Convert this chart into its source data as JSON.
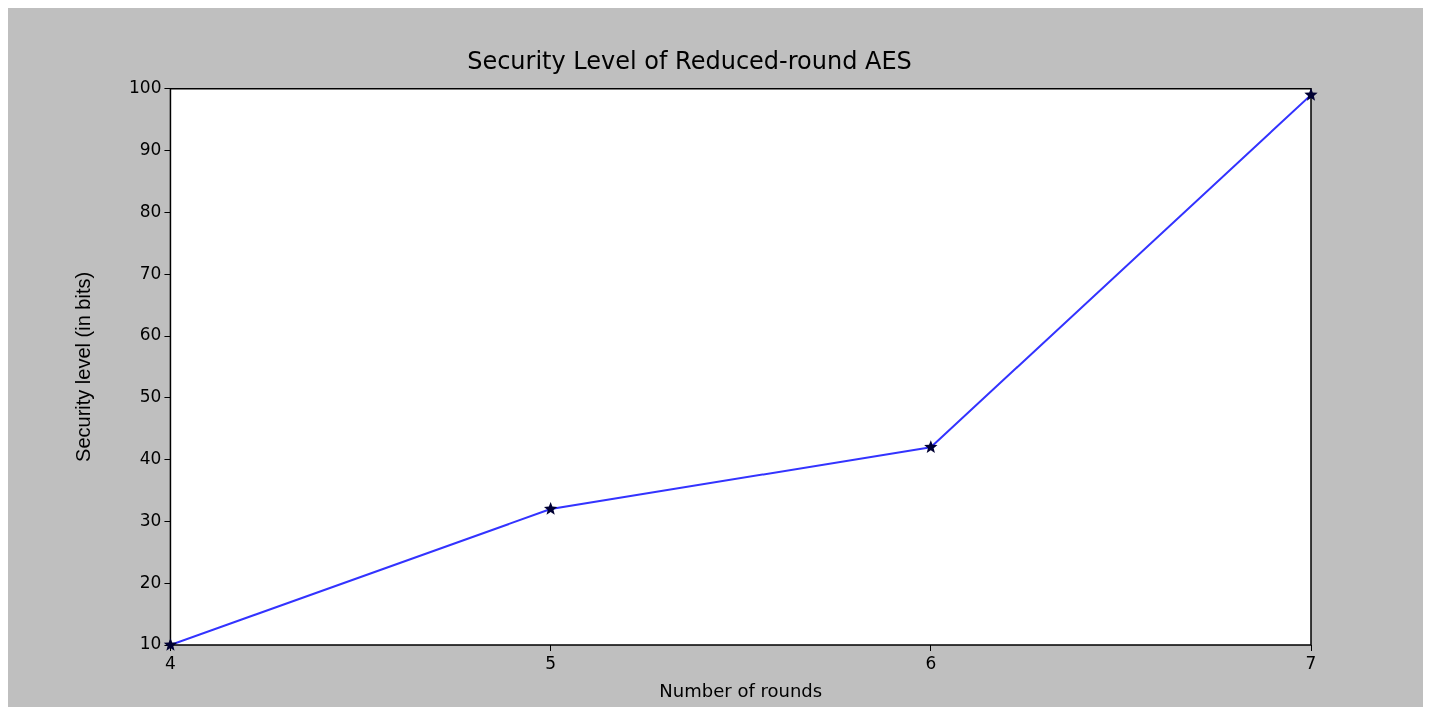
{
  "chart_data": {
    "type": "line",
    "title": "Security Level of Reduced-round AES",
    "xlabel": "Number of rounds",
    "ylabel": "Security level (in bits)",
    "x": [
      4,
      5,
      6,
      7
    ],
    "series": [
      {
        "color": "#3333ff",
        "values": [
          10,
          32,
          42,
          99
        ]
      }
    ],
    "xlim": [
      4,
      7
    ],
    "xticks": [
      4,
      5,
      6,
      7
    ],
    "ylim": [
      10,
      100
    ],
    "yticks": [
      10,
      20,
      30,
      40,
      50,
      60,
      70,
      80,
      90,
      100
    ],
    "grid": false,
    "marker": "star",
    "line_style": "solid"
  }
}
